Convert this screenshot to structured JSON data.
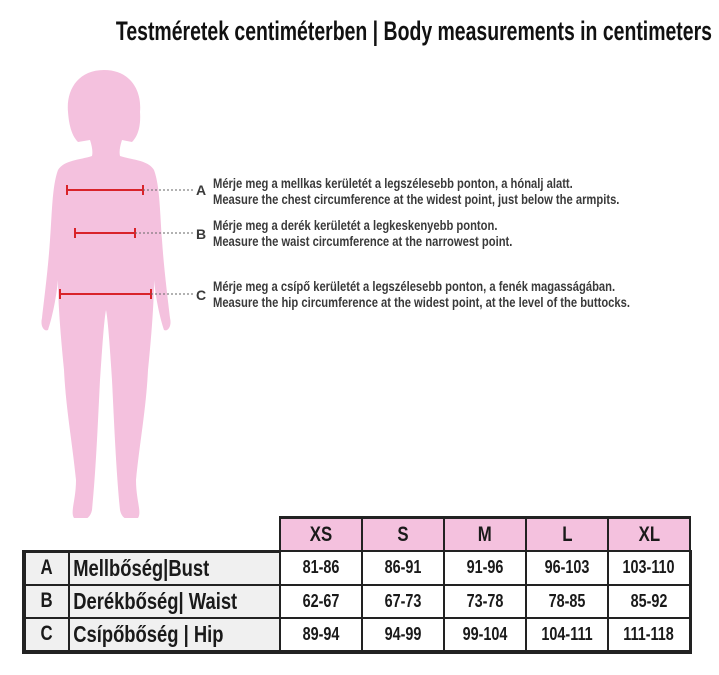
{
  "title": "Testméretek centiméterben | Body measurements in centimeters",
  "colors": {
    "silhouette": "#f4c1de",
    "measure_line": "#d9232a",
    "header_bg": "#f4c1de"
  },
  "instructions": [
    {
      "letter": "A",
      "hu": "Mérje meg a mellkas kerületét a legszélesebb ponton, a hónalj alatt.",
      "en": "Measure the chest circumference at the widest point, just below the armpits."
    },
    {
      "letter": "B",
      "hu": "Mérje meg a derék kerületét a legkeskenyebb ponton.",
      "en": "Measure the waist circumference at the narrowest point."
    },
    {
      "letter": "C",
      "hu": "Mérje meg a csípő kerületét a legszélesebb ponton, a fenék magasságában.",
      "en": "Measure the hip circumference at the widest point, at the level of the buttocks."
    }
  ],
  "table": {
    "sizes": [
      "XS",
      "S",
      "M",
      "L",
      "XL"
    ],
    "rows": [
      {
        "code": "A",
        "label": "Mellbőség|Bust",
        "values": [
          "81-86",
          "86-91",
          "91-96",
          "96-103",
          "103-110"
        ]
      },
      {
        "code": "B",
        "label": "Derékbőség| Waist",
        "values": [
          "62-67",
          "67-73",
          "73-78",
          "78-85",
          "85-92"
        ]
      },
      {
        "code": "C",
        "label": "Csípőbőség | Hip",
        "values": [
          "89-94",
          "94-99",
          "99-104",
          "104-111",
          "111-118"
        ]
      }
    ]
  }
}
